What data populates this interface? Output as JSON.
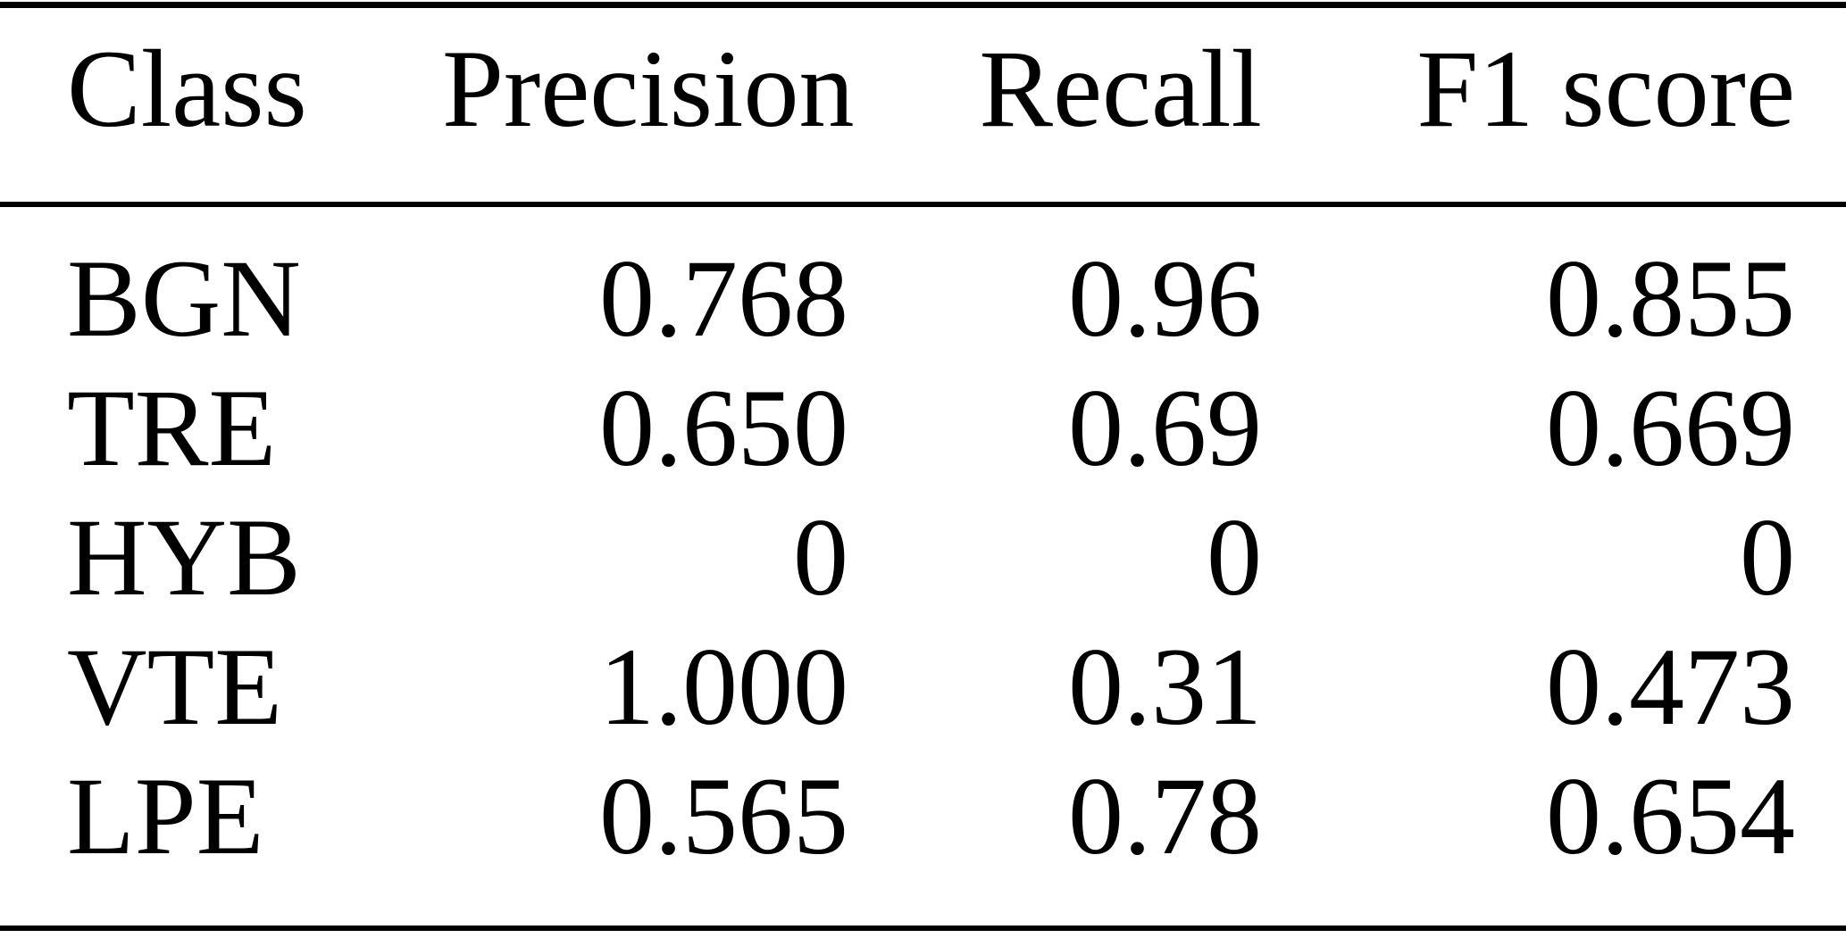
{
  "table": {
    "columns": [
      "Class",
      "Precision",
      "Recall",
      "F1 score"
    ],
    "rows": [
      {
        "class": "BGN",
        "precision": "0.768",
        "recall": "0.96",
        "f1": "0.855"
      },
      {
        "class": "TRE",
        "precision": "0.650",
        "recall": "0.69",
        "f1": "0.669"
      },
      {
        "class": "HYB",
        "precision": "0",
        "recall": "0",
        "f1": "0"
      },
      {
        "class": "VTE",
        "precision": "1.000",
        "recall": "0.31",
        "f1": "0.473"
      },
      {
        "class": "LPE",
        "precision": "0.565",
        "recall": "0.78",
        "f1": "0.654"
      }
    ]
  },
  "chart_data": {
    "type": "table",
    "title": "",
    "columns": [
      "Class",
      "Precision",
      "Recall",
      "F1 score"
    ],
    "rows": [
      [
        "BGN",
        0.768,
        0.96,
        0.855
      ],
      [
        "TRE",
        0.65,
        0.69,
        0.669
      ],
      [
        "HYB",
        0,
        0,
        0
      ],
      [
        "VTE",
        1.0,
        0.31,
        0.473
      ],
      [
        "LPE",
        0.565,
        0.78,
        0.654
      ]
    ]
  },
  "colors": {
    "text": "#000000",
    "background": "#ffffff",
    "rule": "#000000"
  }
}
